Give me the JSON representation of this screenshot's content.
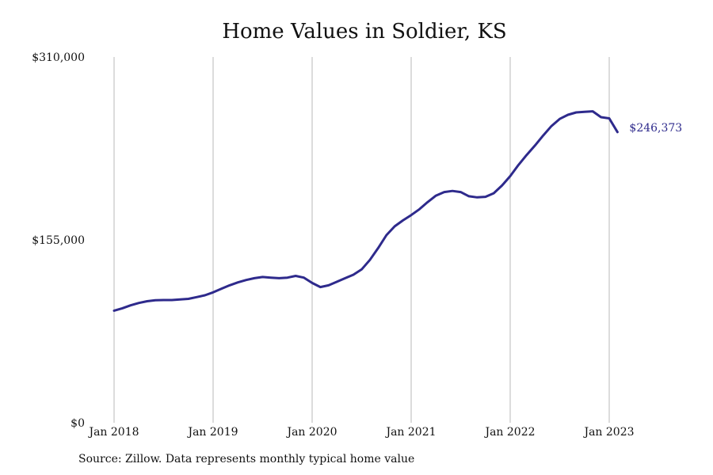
{
  "source_note": "Source: Zillow. Data represents monthly typical home value",
  "colors": {
    "line": "#2e2a8c",
    "gridline": "#b8b8b8",
    "text": "#111111"
  },
  "chart_data": {
    "type": "line",
    "title": "Home Values in Soldier, KS",
    "xlabel": "",
    "ylabel": "",
    "x_range": [
      "2018-01",
      "2023-02"
    ],
    "ylim": [
      0,
      310000
    ],
    "y_ticks": [
      {
        "value": 0,
        "label": "$0"
      },
      {
        "value": 155000,
        "label": "$155,000"
      },
      {
        "value": 310000,
        "label": "$310,000"
      }
    ],
    "x_ticks": [
      {
        "value": "2018-01",
        "label": "Jan 2018"
      },
      {
        "value": "2019-01",
        "label": "Jan 2019"
      },
      {
        "value": "2020-01",
        "label": "Jan 2020"
      },
      {
        "value": "2021-01",
        "label": "Jan 2021"
      },
      {
        "value": "2022-01",
        "label": "Jan 2022"
      },
      {
        "value": "2023-01",
        "label": "Jan 2023"
      }
    ],
    "grid": "vertical",
    "end_label": "$246,373",
    "series": [
      {
        "x": [
          "2018-01",
          "2018-02",
          "2018-03",
          "2018-04",
          "2018-05",
          "2018-06",
          "2018-07",
          "2018-08",
          "2018-09",
          "2018-10",
          "2018-11",
          "2018-12",
          "2019-01",
          "2019-02",
          "2019-03",
          "2019-04",
          "2019-05",
          "2019-06",
          "2019-07",
          "2019-08",
          "2019-09",
          "2019-10",
          "2019-11",
          "2019-12",
          "2020-01",
          "2020-02",
          "2020-03",
          "2020-04",
          "2020-05",
          "2020-06",
          "2020-07",
          "2020-08",
          "2020-09",
          "2020-10",
          "2020-11",
          "2020-12",
          "2021-01",
          "2021-02",
          "2021-03",
          "2021-04",
          "2021-05",
          "2021-06",
          "2021-07",
          "2021-08",
          "2021-09",
          "2021-10",
          "2021-11",
          "2021-12",
          "2022-01",
          "2022-02",
          "2022-03",
          "2022-04",
          "2022-05",
          "2022-06",
          "2022-07",
          "2022-08",
          "2022-09",
          "2022-10",
          "2022-11",
          "2022-12",
          "2023-01",
          "2023-02"
        ],
        "values": [
          95000,
          97000,
          99500,
          101500,
          103000,
          103800,
          104000,
          104000,
          104500,
          105000,
          106500,
          108000,
          110500,
          113500,
          116500,
          119000,
          121000,
          122500,
          123500,
          123000,
          122500,
          123000,
          124500,
          123000,
          118500,
          115000,
          116500,
          119500,
          122500,
          125500,
          130000,
          138000,
          148000,
          159000,
          166500,
          171500,
          176000,
          181000,
          187000,
          192500,
          195500,
          196500,
          195500,
          192000,
          191000,
          191500,
          194500,
          201000,
          209000,
          218500,
          227000,
          235000,
          243500,
          251500,
          257500,
          261000,
          263000,
          263500,
          264000,
          259000,
          258000,
          246373
        ]
      }
    ]
  }
}
